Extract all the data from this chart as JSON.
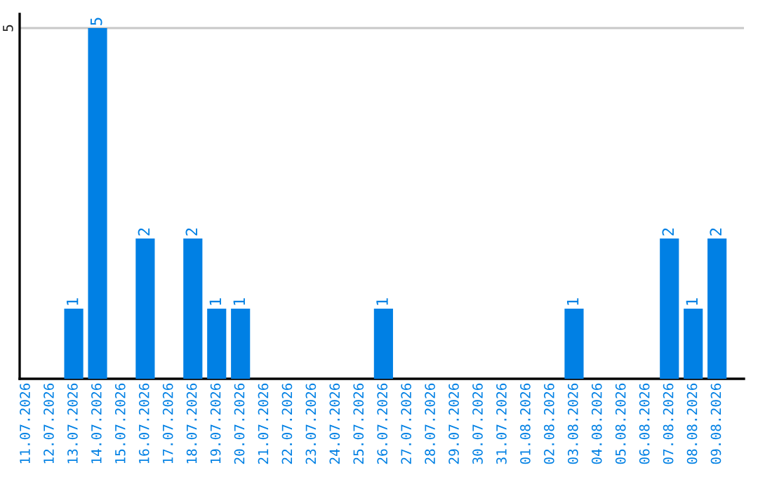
{
  "chart_data": {
    "type": "bar",
    "categories": [
      "11.07.2026",
      "12.07.2026",
      "13.07.2026",
      "14.07.2026",
      "15.07.2026",
      "16.07.2026",
      "17.07.2026",
      "18.07.2026",
      "19.07.2026",
      "20.07.2026",
      "21.07.2026",
      "22.07.2026",
      "23.07.2026",
      "24.07.2026",
      "25.07.2026",
      "26.07.2026",
      "27.07.2026",
      "28.07.2026",
      "29.07.2026",
      "30.07.2026",
      "31.07.2026",
      "01.08.2026",
      "02.08.2026",
      "03.08.2026",
      "04.08.2026",
      "05.08.2026",
      "06.08.2026",
      "07.08.2026",
      "08.08.2026",
      "09.08.2026"
    ],
    "values": [
      0,
      0,
      1,
      5,
      0,
      2,
      0,
      2,
      1,
      1,
      0,
      0,
      0,
      0,
      0,
      1,
      0,
      0,
      0,
      0,
      0,
      0,
      0,
      1,
      0,
      0,
      0,
      2,
      1,
      2
    ],
    "value_labels": [
      null,
      null,
      "1",
      "5",
      null,
      "2",
      null,
      "2",
      "1",
      "1",
      null,
      null,
      null,
      null,
      null,
      "1",
      null,
      null,
      null,
      null,
      null,
      null,
      null,
      "1",
      null,
      null,
      null,
      "2",
      "1",
      "2"
    ],
    "color": "#0080e4",
    "ylim": [
      0,
      5.2
    ],
    "yticks": [
      5
    ],
    "grid": "y",
    "legend": false
  }
}
